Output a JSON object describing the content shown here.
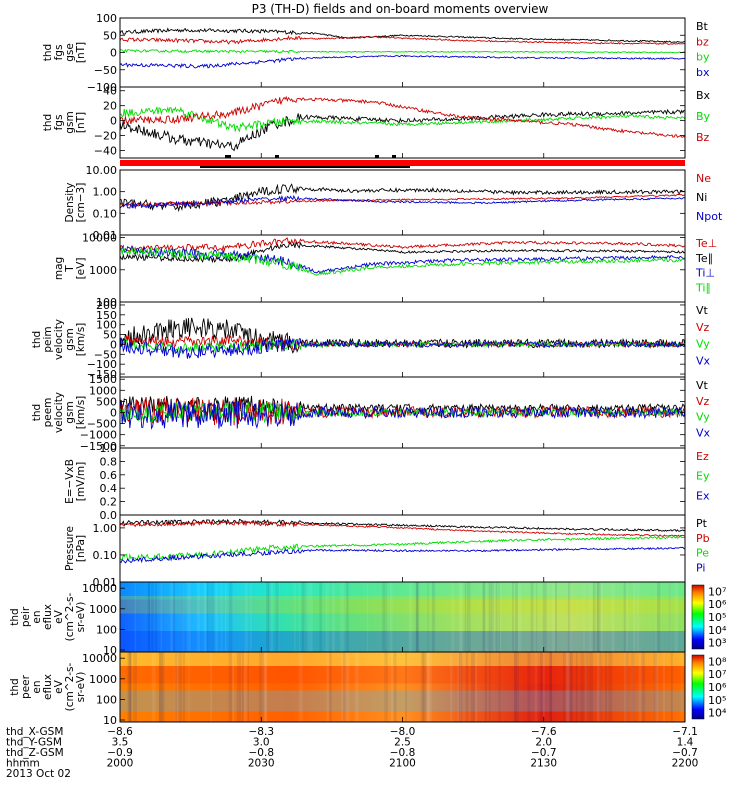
{
  "title": "P3 (TH-D) fields and on-board moments overview",
  "colors": {
    "black": "#000000",
    "red": "#cc0000",
    "green": "#00dd00",
    "blue": "#0000cc"
  },
  "chart_data": [
    {
      "type": "line",
      "ylabel": [
        "thd",
        "fgs",
        "gse",
        "[nT]"
      ],
      "yticks": [
        "100",
        "50",
        "0",
        "−50",
        "−100"
      ],
      "ylim": [
        -100,
        100
      ],
      "legend": [
        {
          "name": "Bt",
          "color": "black"
        },
        {
          "name": "bz",
          "color": "red"
        },
        {
          "name": "by",
          "color": "green"
        },
        {
          "name": "bx",
          "color": "blue"
        }
      ],
      "series": [
        {
          "name": "Bt",
          "color": "black",
          "x": [
            0,
            0.1,
            0.25,
            0.35,
            0.4,
            0.5,
            0.7,
            0.9,
            1
          ],
          "y": [
            58,
            65,
            62,
            55,
            42,
            50,
            40,
            34,
            30
          ],
          "noise": 3
        },
        {
          "name": "bz",
          "color": "red",
          "x": [
            0,
            0.1,
            0.2,
            0.3,
            0.35,
            0.45,
            0.6,
            0.8,
            1
          ],
          "y": [
            38,
            35,
            30,
            42,
            40,
            45,
            35,
            28,
            25
          ],
          "noise": 3
        },
        {
          "name": "by",
          "color": "green",
          "x": [
            0,
            0.2,
            0.4,
            0.7,
            1
          ],
          "y": [
            5,
            3,
            2,
            2,
            0
          ],
          "noise": 2
        },
        {
          "name": "bx",
          "color": "blue",
          "x": [
            0,
            0.15,
            0.3,
            0.35,
            0.5,
            0.7,
            1
          ],
          "y": [
            -35,
            -40,
            -20,
            -15,
            -10,
            -15,
            -18
          ],
          "noise": 3
        }
      ]
    },
    {
      "type": "line",
      "ylabel": [
        "thd",
        "fgs",
        "gsm",
        "[nT]"
      ],
      "yticks": [
        "40",
        "20",
        "0",
        "−20",
        "−40"
      ],
      "ylim": [
        -50,
        45
      ],
      "legend": [
        {
          "name": "Bx",
          "color": "black"
        },
        {
          "name": "By",
          "color": "green"
        },
        {
          "name": "Bz",
          "color": "red"
        }
      ],
      "series": [
        {
          "name": "Bx",
          "color": "black",
          "x": [
            0,
            0.1,
            0.2,
            0.27,
            0.33,
            0.5,
            0.6,
            0.75,
            0.9,
            1
          ],
          "y": [
            -5,
            -25,
            -35,
            -5,
            5,
            0,
            2,
            8,
            10,
            12
          ],
          "noise": 4
        },
        {
          "name": "By",
          "color": "green",
          "x": [
            0,
            0.1,
            0.2,
            0.3,
            0.5,
            0.7,
            0.9,
            1
          ],
          "y": [
            10,
            15,
            -10,
            0,
            -5,
            0,
            6,
            3
          ],
          "noise": 3
        },
        {
          "name": "Bz",
          "color": "red",
          "x": [
            0,
            0.1,
            0.2,
            0.3,
            0.45,
            0.6,
            0.8,
            0.9,
            1
          ],
          "y": [
            0,
            2,
            10,
            30,
            25,
            5,
            -5,
            -15,
            -22
          ],
          "noise": 3
        }
      ]
    },
    {
      "type": "line",
      "ylabel": [
        "Density",
        "[cm−3]"
      ],
      "yscale": "log",
      "yticks": [
        "10.00",
        "1.00",
        "0.10",
        "0.01"
      ],
      "ylim": [
        0.01,
        10
      ],
      "legend": [
        {
          "name": "Ne",
          "color": "red"
        },
        {
          "name": "Ni",
          "color": "black"
        },
        {
          "name": "Npot",
          "color": "blue"
        }
      ],
      "series": [
        {
          "name": "Ni",
          "color": "black",
          "x": [
            0,
            0.1,
            0.2,
            0.3,
            0.4,
            0.55,
            0.7,
            1
          ],
          "y": [
            0.3,
            0.2,
            0.4,
            1.5,
            1.1,
            1.2,
            0.9,
            1.0
          ],
          "noise": 0.12
        },
        {
          "name": "Ne",
          "color": "red",
          "x": [
            0,
            0.2,
            0.4,
            0.6,
            0.8,
            1
          ],
          "y": [
            0.25,
            0.3,
            0.4,
            0.45,
            0.5,
            0.7
          ],
          "noise": 0.05
        },
        {
          "name": "Npot",
          "color": "blue",
          "x": [
            0,
            0.15,
            0.3,
            0.45,
            0.65,
            0.8,
            1
          ],
          "y": [
            0.2,
            0.3,
            0.5,
            0.35,
            0.3,
            0.4,
            0.5
          ],
          "noise": 0.06
        }
      ]
    },
    {
      "type": "line",
      "ylabel": [
        "mag",
        "T",
        "[eV]"
      ],
      "yscale": "log",
      "yticks": [
        "10000",
        "1000",
        "100"
      ],
      "ylim": [
        100,
        12000
      ],
      "legend": [
        {
          "name": "Te⊥",
          "color": "red"
        },
        {
          "name": "Te∥",
          "color": "black"
        },
        {
          "name": "Ti⊥",
          "color": "blue"
        },
        {
          "name": "Ti∥",
          "color": "green"
        }
      ],
      "series": [
        {
          "name": "Te⊥",
          "color": "red",
          "x": [
            0,
            0.2,
            0.3,
            0.5,
            0.7,
            0.9,
            1
          ],
          "y": [
            4500,
            5000,
            8000,
            5000,
            7000,
            6500,
            5500
          ],
          "noise": 0.06
        },
        {
          "name": "Te∥",
          "color": "black",
          "x": [
            0,
            0.2,
            0.3,
            0.5,
            0.7,
            0.9,
            1
          ],
          "y": [
            2500,
            2000,
            6000,
            3500,
            4000,
            3800,
            3500
          ],
          "noise": 0.05
        },
        {
          "name": "Ti⊥",
          "color": "blue",
          "x": [
            0,
            0.25,
            0.35,
            0.45,
            0.6,
            0.8,
            1
          ],
          "y": [
            4000,
            2500,
            800,
            1500,
            2000,
            2200,
            2500
          ],
          "noise": 0.08
        },
        {
          "name": "Ti∥",
          "color": "green",
          "x": [
            0,
            0.25,
            0.35,
            0.45,
            0.6,
            0.8,
            1
          ],
          "y": [
            4000,
            2000,
            700,
            1200,
            1500,
            1800,
            2000
          ],
          "noise": 0.08
        }
      ]
    },
    {
      "type": "line",
      "ylabel": [
        "thd",
        "peim",
        "velocity",
        "gsm",
        "[km/s]"
      ],
      "yticks": [
        "200",
        "150",
        "100",
        "50",
        "0",
        "−50",
        "−100",
        "−150"
      ],
      "ylim": [
        -165,
        215
      ],
      "legend": [
        {
          "name": "Vt",
          "color": "black"
        },
        {
          "name": "Vz",
          "color": "red"
        },
        {
          "name": "Vy",
          "color": "green"
        },
        {
          "name": "Vx",
          "color": "blue"
        }
      ],
      "series": [
        {
          "name": "Vt",
          "color": "black",
          "x": [
            0,
            0.1,
            0.2,
            0.25,
            0.3,
            0.5,
            1
          ],
          "y": [
            30,
            90,
            70,
            20,
            8,
            5,
            5
          ],
          "noise": 30
        },
        {
          "name": "Vz",
          "color": "red",
          "x": [
            0,
            0.1,
            0.2,
            0.3,
            1
          ],
          "y": [
            20,
            10,
            20,
            0,
            0
          ],
          "noise": 15
        },
        {
          "name": "Vy",
          "color": "green",
          "x": [
            0,
            0.1,
            0.2,
            0.3,
            1
          ],
          "y": [
            10,
            -20,
            -10,
            0,
            0
          ],
          "noise": 15
        },
        {
          "name": "Vx",
          "color": "blue",
          "x": [
            0,
            0.1,
            0.2,
            0.3,
            1
          ],
          "y": [
            0,
            -40,
            -30,
            0,
            0
          ],
          "noise": 20
        }
      ]
    },
    {
      "type": "line",
      "ylabel": [
        "thd",
        "peem",
        "velocity",
        "gsm",
        "[km/s]"
      ],
      "yticks": [
        "1500",
        "1000",
        "500",
        "0",
        "−500",
        "−1000",
        "−1500"
      ],
      "ylim": [
        -1600,
        1600
      ],
      "legend": [
        {
          "name": "Vt",
          "color": "black"
        },
        {
          "name": "Vz",
          "color": "red"
        },
        {
          "name": "Vy",
          "color": "green"
        },
        {
          "name": "Vx",
          "color": "blue"
        }
      ],
      "series": [
        {
          "name": "Vt",
          "color": "black",
          "x": [
            0,
            0.3,
            0.31,
            1
          ],
          "y": [
            300,
            300,
            200,
            200
          ],
          "noise": 250
        },
        {
          "name": "Vz",
          "color": "red",
          "x": [
            0,
            0.3,
            0.31,
            1
          ],
          "y": [
            50,
            50,
            20,
            20
          ],
          "noise": 350
        },
        {
          "name": "Vy",
          "color": "green",
          "x": [
            0,
            0.3,
            0.31,
            1
          ],
          "y": [
            0,
            0,
            0,
            0
          ],
          "noise": 250
        },
        {
          "name": "Vx",
          "color": "blue",
          "x": [
            0,
            0.3,
            0.31,
            1
          ],
          "y": [
            -100,
            -100,
            0,
            0
          ],
          "noise": 350
        }
      ]
    },
    {
      "type": "line",
      "ylabel": [
        "E=−VxB",
        "[mV/m]"
      ],
      "yticks": [
        "1.0",
        "0.8",
        "0.6",
        "0.4",
        "0.2",
        "0.0"
      ],
      "ylim": [
        0,
        1
      ],
      "legend": [
        {
          "name": "Ez",
          "color": "red"
        },
        {
          "name": "Ey",
          "color": "green"
        },
        {
          "name": "Ex",
          "color": "blue"
        }
      ],
      "series": []
    },
    {
      "type": "line",
      "ylabel": [
        "Pressure",
        "[nPa]"
      ],
      "yscale": "log",
      "yticks": [
        "1.00",
        "0.10",
        "0.01"
      ],
      "ylim": [
        0.01,
        3
      ],
      "legend": [
        {
          "name": "Pt",
          "color": "black"
        },
        {
          "name": "Pb",
          "color": "red"
        },
        {
          "name": "Pe",
          "color": "green"
        },
        {
          "name": "Pi",
          "color": "blue"
        }
      ],
      "series": [
        {
          "name": "Pt",
          "color": "black",
          "x": [
            0,
            0.2,
            0.4,
            0.6,
            0.8,
            1
          ],
          "y": [
            1.5,
            1.7,
            1.4,
            1.1,
            0.9,
            0.8
          ],
          "noise": 0.05
        },
        {
          "name": "Pb",
          "color": "red",
          "x": [
            0,
            0.2,
            0.4,
            0.6,
            0.8,
            1
          ],
          "y": [
            1.3,
            1.5,
            1.2,
            0.8,
            0.6,
            0.5
          ],
          "noise": 0.04
        },
        {
          "name": "Pe",
          "color": "green",
          "x": [
            0,
            0.15,
            0.3,
            0.5,
            0.7,
            1
          ],
          "y": [
            0.08,
            0.1,
            0.2,
            0.25,
            0.35,
            0.45
          ],
          "noise": 0.06
        },
        {
          "name": "Pi",
          "color": "blue",
          "x": [
            0,
            0.2,
            0.35,
            0.6,
            1
          ],
          "y": [
            0.06,
            0.1,
            0.15,
            0.14,
            0.18
          ],
          "noise": 0.05
        }
      ]
    },
    {
      "type": "heatmap",
      "ylabel": [
        "thd",
        "peir",
        "en",
        "eflux",
        "eV",
        "(cm^2-s-",
        "sr-eV)"
      ],
      "yticks": [
        "10000",
        "1000",
        "100",
        "10"
      ],
      "colorbar_ticks": [
        "10⁷",
        "10⁶",
        "10⁵",
        "10⁴",
        "10³"
      ],
      "colorbar_range": [
        2.5,
        7.5
      ],
      "energy_range": [
        8,
        20000
      ]
    },
    {
      "type": "heatmap",
      "ylabel": [
        "thd",
        "peer",
        "en",
        "eflux",
        "eV",
        "(cm^2-s-",
        "sr-eV)"
      ],
      "yticks": [
        "10000",
        "1000",
        "100",
        "10"
      ],
      "colorbar_ticks": [
        "10⁸",
        "10⁷",
        "10⁶",
        "10⁵",
        "10⁴"
      ],
      "colorbar_range": [
        3.5,
        8.5
      ],
      "energy_range": [
        8,
        20000
      ]
    }
  ],
  "xaxis": {
    "rows": [
      {
        "label": "thd_X-GSM",
        "values": [
          "−8.6",
          "−8.3",
          "−8.0",
          "−7.6",
          "−7.1"
        ]
      },
      {
        "label": "thd_Y-GSM",
        "values": [
          "3.5",
          "3.0",
          "2.5",
          "2.0",
          "1.4"
        ]
      },
      {
        "label": "thd_Z-GSM",
        "values": [
          "−0.9",
          "−0.8",
          "−0.8",
          "−0.7",
          "−0.7"
        ]
      },
      {
        "label": "hhmm",
        "values": [
          "2000",
          "2030",
          "2100",
          "2130",
          "2200"
        ]
      }
    ],
    "date": "2013 Oct 02"
  }
}
